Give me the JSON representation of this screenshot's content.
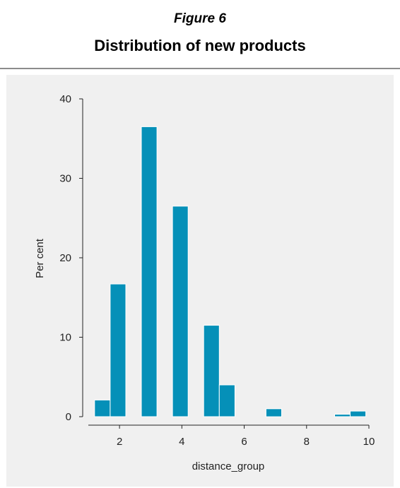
{
  "figure_label": "Figure 6",
  "title": "Distribution of new products",
  "chart_data": {
    "type": "bar",
    "title": "Distribution of new products",
    "xlabel": "distance_group",
    "ylabel": "Per cent",
    "xlim": [
      1,
      10
    ],
    "ylim": [
      0,
      40
    ],
    "xticks": [
      2,
      4,
      6,
      8,
      10
    ],
    "yticks": [
      0,
      10,
      20,
      30,
      40
    ],
    "bin_width": 0.5,
    "bins": [
      {
        "start": 1.2,
        "value": 2.1
      },
      {
        "start": 1.7,
        "value": 16.7
      },
      {
        "start": 2.7,
        "value": 36.5
      },
      {
        "start": 3.7,
        "value": 26.5
      },
      {
        "start": 4.7,
        "value": 11.5
      },
      {
        "start": 5.2,
        "value": 4.0
      },
      {
        "start": 6.7,
        "value": 1.0
      },
      {
        "start": 8.9,
        "value": 0.3
      },
      {
        "start": 9.4,
        "value": 0.7
      }
    ],
    "grid": false,
    "bar_color": "#0590b8",
    "background_color": "#f0f0f0"
  }
}
